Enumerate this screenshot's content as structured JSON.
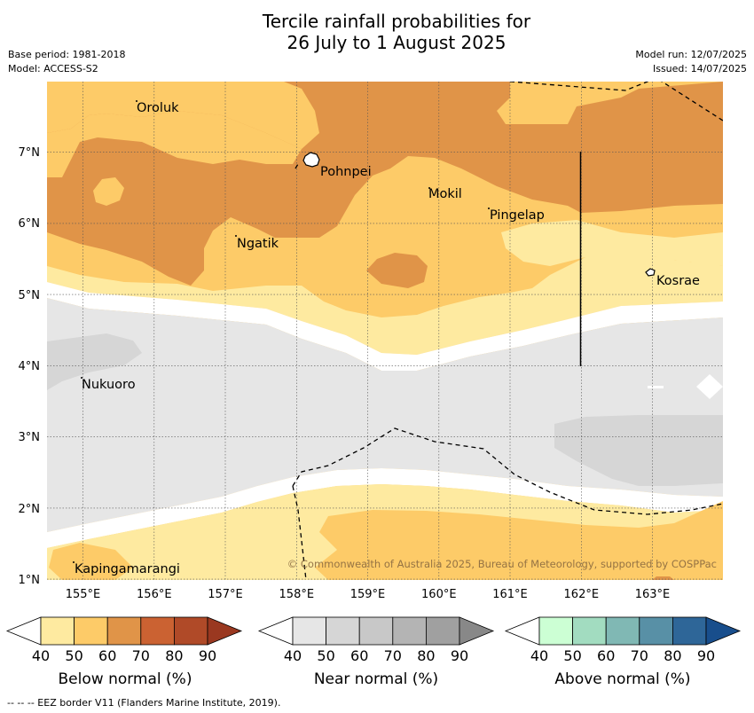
{
  "title": {
    "line1": "Tercile rainfall probabilities for",
    "line2": "26 July to 1 August 2025"
  },
  "meta": {
    "base_period": "Base period: 1981-2018",
    "model": "Model: ACCESS-S2",
    "model_run": "Model run: 12/07/2025",
    "issued": "Issued: 14/07/2025"
  },
  "map": {
    "lon_labels": [
      "155°E",
      "156°E",
      "157°E",
      "158°E",
      "159°E",
      "160°E",
      "161°E",
      "162°E",
      "163°E"
    ],
    "lat_labels": [
      "7°N",
      "6°N",
      "5°N",
      "4°N",
      "3°N",
      "2°N",
      "1°N"
    ],
    "places": [
      "Oroluk",
      "Pohnpei",
      "Mokil",
      "Pingelap",
      "Ngatik",
      "Kosrae",
      "Nukuoro",
      "Kapingamarangi"
    ],
    "copyright": "© Commonwealth of Australia 2025, Bureau of Meteorology, supported by COSPPac"
  },
  "legend": {
    "ticks": [
      "40",
      "50",
      "60",
      "70",
      "80",
      "90"
    ],
    "below": {
      "label": "Below normal (%)",
      "colors": [
        "#ffffff",
        "#feeaa0",
        "#fdcb68",
        "#e09448",
        "#cb6232",
        "#b04a28",
        "#9a3820"
      ]
    },
    "near": {
      "label": "Near normal (%)",
      "colors": [
        "#ffffff",
        "#e6e6e6",
        "#d6d6d6",
        "#c8c8c8",
        "#b4b4b4",
        "#a0a0a0",
        "#888888"
      ]
    },
    "above": {
      "label": "Above normal (%)",
      "colors": [
        "#ffffff",
        "#ccffd4",
        "#a2dcc0",
        "#80b8b4",
        "#5890a6",
        "#2e6698",
        "#184e8c"
      ]
    }
  },
  "footnote": "--  --  -- EEZ border V11 (Flanders Marine Institute, 2019)."
}
